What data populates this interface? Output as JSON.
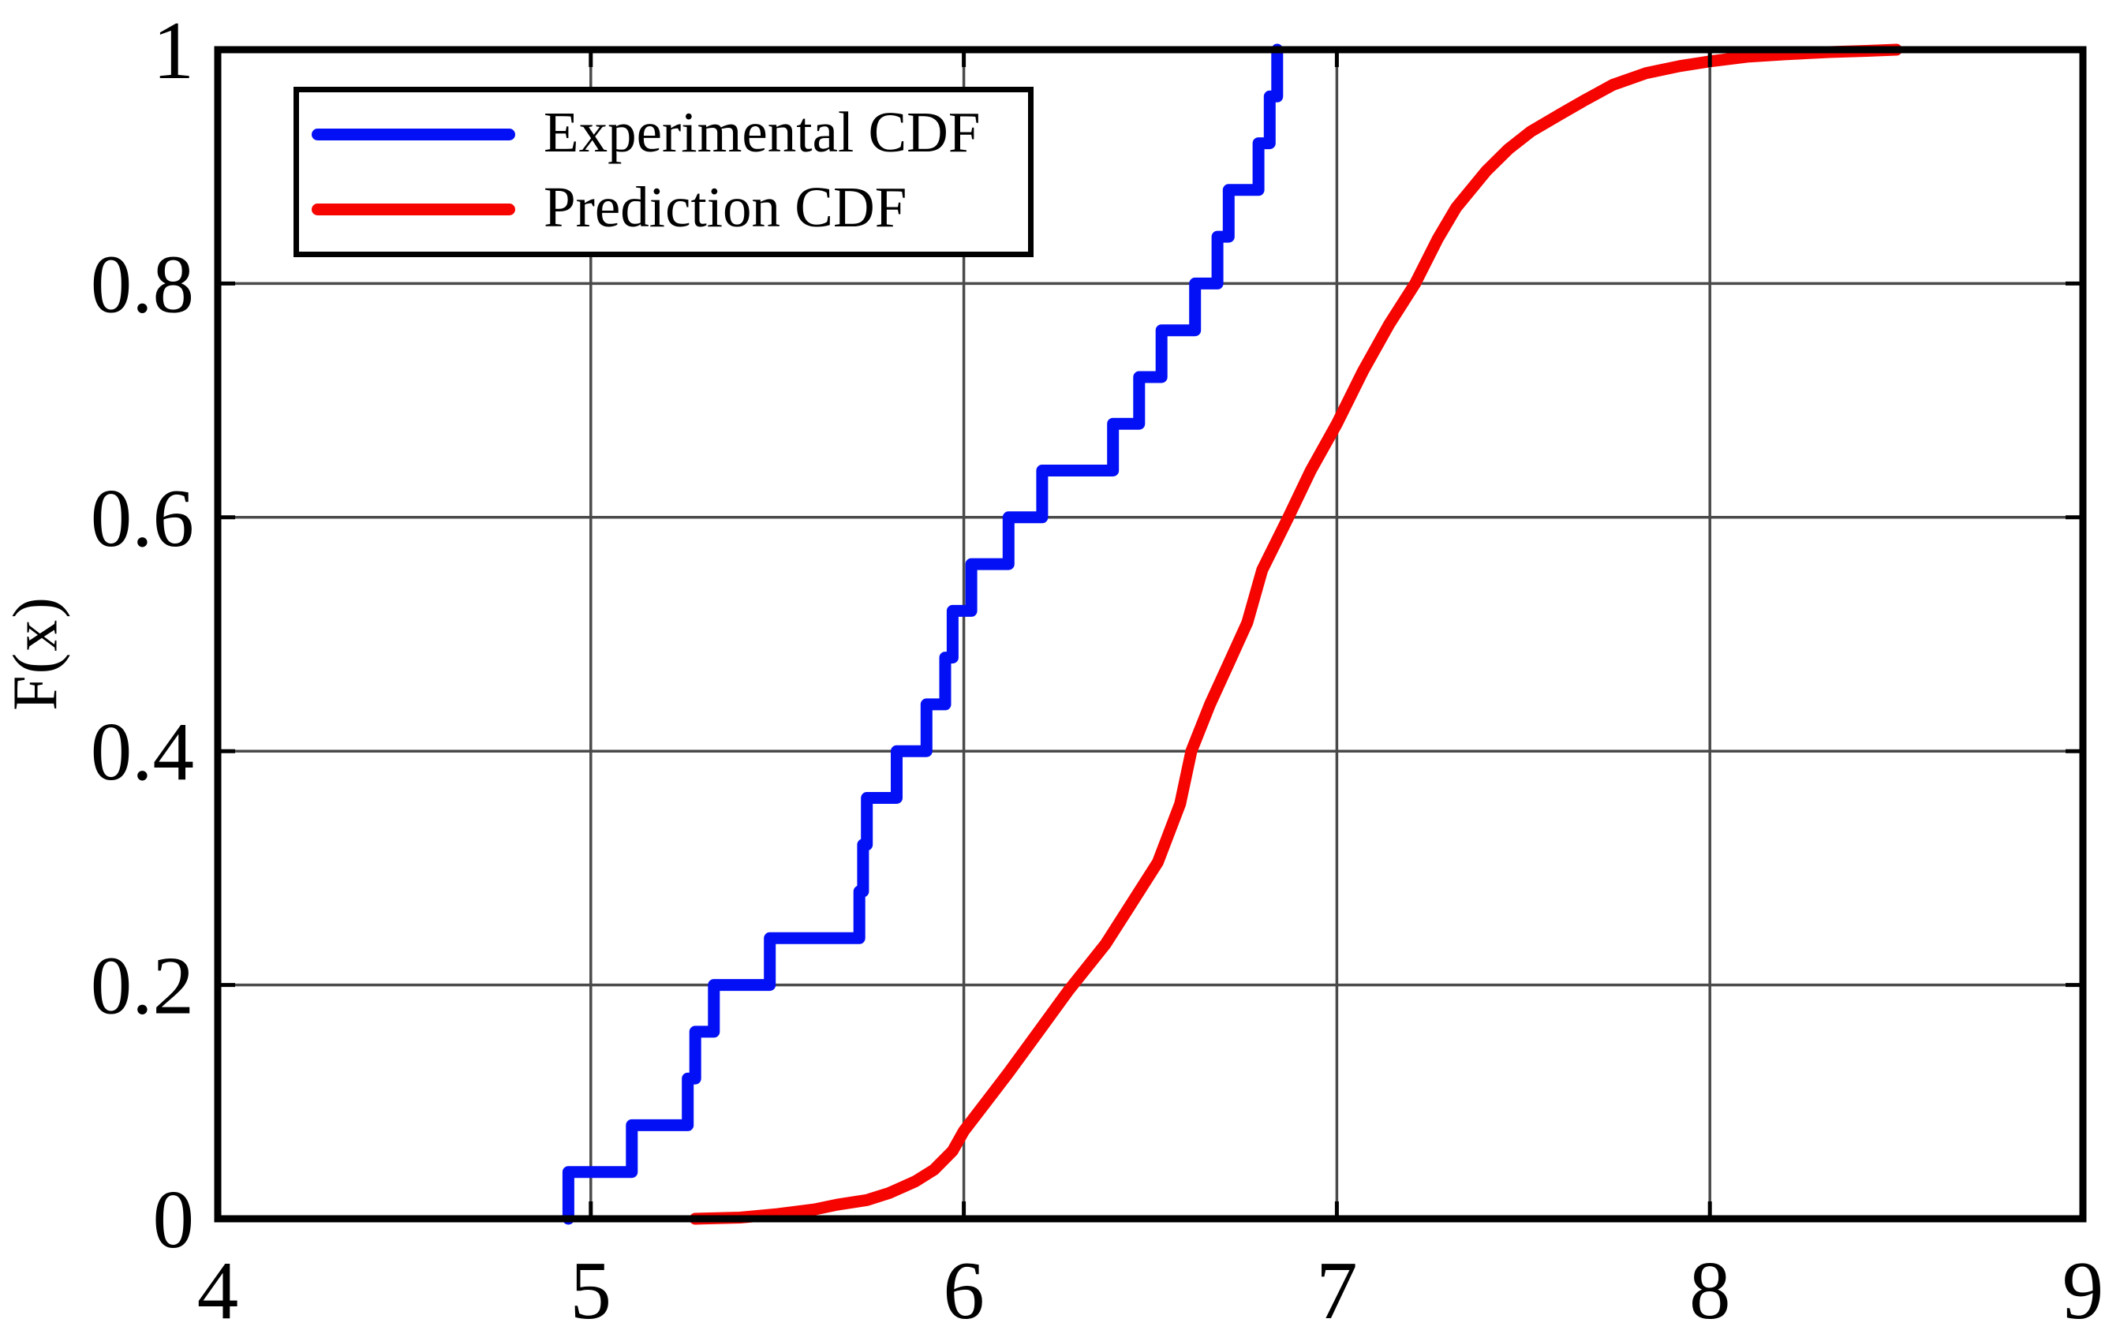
{
  "chart_data": {
    "type": "line",
    "title": "",
    "xlabel": "",
    "ylabel": "F(x)",
    "xlim": [
      4,
      9
    ],
    "ylim": [
      0,
      1
    ],
    "x_tick_values": [
      4,
      5,
      6,
      7,
      8,
      9
    ],
    "x_tick_labels": [
      "4",
      "5",
      "6",
      "7",
      "8",
      "9"
    ],
    "y_tick_values": [
      0,
      0.2,
      0.4,
      0.6,
      0.8,
      1
    ],
    "y_tick_labels": [
      "0",
      "0.2",
      "0.4",
      "0.6",
      "0.8",
      "1"
    ],
    "grid": {
      "x": [
        5,
        6,
        7,
        8
      ],
      "y": [
        0.2,
        0.4,
        0.6,
        0.8
      ],
      "color": "#4a4a4a",
      "on": true
    },
    "axis_color": "#000000",
    "background": "#ffffff",
    "legend": {
      "position": "top-left",
      "entries": [
        {
          "label": "Experimental CDF",
          "color": "#0310f5"
        },
        {
          "label": "Prediction CDF",
          "color": "#f50400"
        }
      ]
    },
    "series": [
      {
        "name": "Experimental CDF",
        "style": "step",
        "color": "#0310f5",
        "linewidth": 15,
        "points": [
          [
            4.94,
            0.04
          ],
          [
            5.11,
            0.08
          ],
          [
            5.26,
            0.12
          ],
          [
            5.28,
            0.16
          ],
          [
            5.33,
            0.2
          ],
          [
            5.48,
            0.24
          ],
          [
            5.72,
            0.28
          ],
          [
            5.73,
            0.32
          ],
          [
            5.74,
            0.36
          ],
          [
            5.82,
            0.4
          ],
          [
            5.9,
            0.44
          ],
          [
            5.95,
            0.48
          ],
          [
            5.97,
            0.52
          ],
          [
            6.02,
            0.56
          ],
          [
            6.12,
            0.6
          ],
          [
            6.21,
            0.64
          ],
          [
            6.4,
            0.68
          ],
          [
            6.47,
            0.72
          ],
          [
            6.53,
            0.76
          ],
          [
            6.62,
            0.8
          ],
          [
            6.68,
            0.84
          ],
          [
            6.71,
            0.88
          ],
          [
            6.79,
            0.92
          ],
          [
            6.82,
            0.96
          ],
          [
            6.84,
            1.0
          ]
        ]
      },
      {
        "name": "Prediction CDF",
        "style": "smooth",
        "color": "#f50400",
        "linewidth": 15,
        "points": [
          [
            5.28,
            0.0
          ],
          [
            5.4,
            0.001
          ],
          [
            5.5,
            0.004
          ],
          [
            5.6,
            0.008
          ],
          [
            5.66,
            0.012
          ],
          [
            5.74,
            0.016
          ],
          [
            5.8,
            0.022
          ],
          [
            5.87,
            0.032
          ],
          [
            5.92,
            0.042
          ],
          [
            5.97,
            0.058
          ],
          [
            6.0,
            0.075
          ],
          [
            6.06,
            0.1
          ],
          [
            6.12,
            0.125
          ],
          [
            6.2,
            0.16
          ],
          [
            6.28,
            0.195
          ],
          [
            6.38,
            0.235
          ],
          [
            6.45,
            0.27
          ],
          [
            6.52,
            0.305
          ],
          [
            6.58,
            0.355
          ],
          [
            6.61,
            0.4
          ],
          [
            6.66,
            0.44
          ],
          [
            6.71,
            0.475
          ],
          [
            6.76,
            0.51
          ],
          [
            6.8,
            0.555
          ],
          [
            6.87,
            0.6
          ],
          [
            6.93,
            0.64
          ],
          [
            7.0,
            0.68
          ],
          [
            7.07,
            0.725
          ],
          [
            7.14,
            0.765
          ],
          [
            7.21,
            0.8
          ],
          [
            7.27,
            0.838
          ],
          [
            7.32,
            0.865
          ],
          [
            7.4,
            0.896
          ],
          [
            7.46,
            0.915
          ],
          [
            7.52,
            0.93
          ],
          [
            7.6,
            0.945
          ],
          [
            7.66,
            0.956
          ],
          [
            7.74,
            0.97
          ],
          [
            7.83,
            0.98
          ],
          [
            7.92,
            0.986
          ],
          [
            8.0,
            0.99
          ],
          [
            8.1,
            0.994
          ],
          [
            8.2,
            0.996
          ],
          [
            8.32,
            0.998
          ],
          [
            8.42,
            0.999
          ],
          [
            8.5,
            1.0
          ]
        ]
      }
    ]
  }
}
